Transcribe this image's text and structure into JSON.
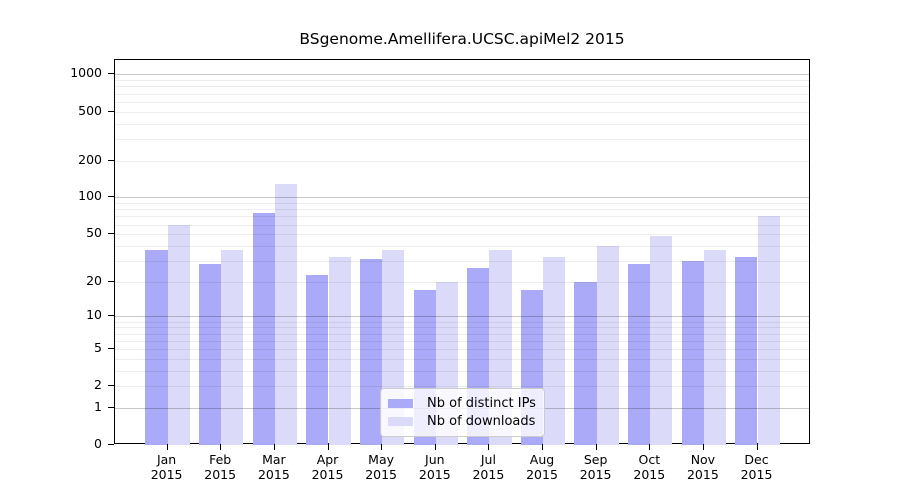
{
  "title": "BSgenome.Amellifera.UCSC.apiMel2 2015",
  "chart_data": {
    "type": "bar",
    "title": "BSgenome.Amellifera.UCSC.apiMel2 2015",
    "y_scale": "log1p",
    "categories": [
      "Jan",
      "Feb",
      "Mar",
      "Apr",
      "May",
      "Jun",
      "Jul",
      "Aug",
      "Sep",
      "Oct",
      "Nov",
      "Dec"
    ],
    "x_tick_year": "2015",
    "series": [
      {
        "name": "Nb of distinct IPs",
        "color": "#aaaaf8",
        "values": [
          37,
          28,
          75,
          23,
          31,
          17,
          26,
          17,
          20,
          28,
          30,
          32
        ]
      },
      {
        "name": "Nb of downloads",
        "color": "#dbdbf9",
        "values": [
          59,
          37,
          130,
          32,
          37,
          20,
          37,
          32,
          40,
          48,
          37,
          70
        ]
      }
    ],
    "yticks": [
      1000,
      500,
      200,
      100,
      50,
      20,
      10,
      5,
      2,
      1,
      0
    ],
    "ylim": [
      0,
      1300
    ],
    "grid": "on",
    "grid_major": [
      1,
      10,
      100,
      1000
    ],
    "grid_minor": [
      2,
      3,
      4,
      5,
      6,
      7,
      8,
      9,
      20,
      30,
      40,
      50,
      60,
      70,
      80,
      90,
      200,
      300,
      400,
      500,
      600,
      700,
      800,
      900
    ],
    "legend_position": "inside-bottom-center"
  },
  "colors": {
    "bar_ips": "#aaaaf8",
    "bar_downloads": "#dbdbf9",
    "frame": "#000000",
    "grid_major": "#c7c7c7",
    "grid_minor": "#ededed",
    "legend_border": "#cccccc",
    "background": "#ffffff"
  }
}
